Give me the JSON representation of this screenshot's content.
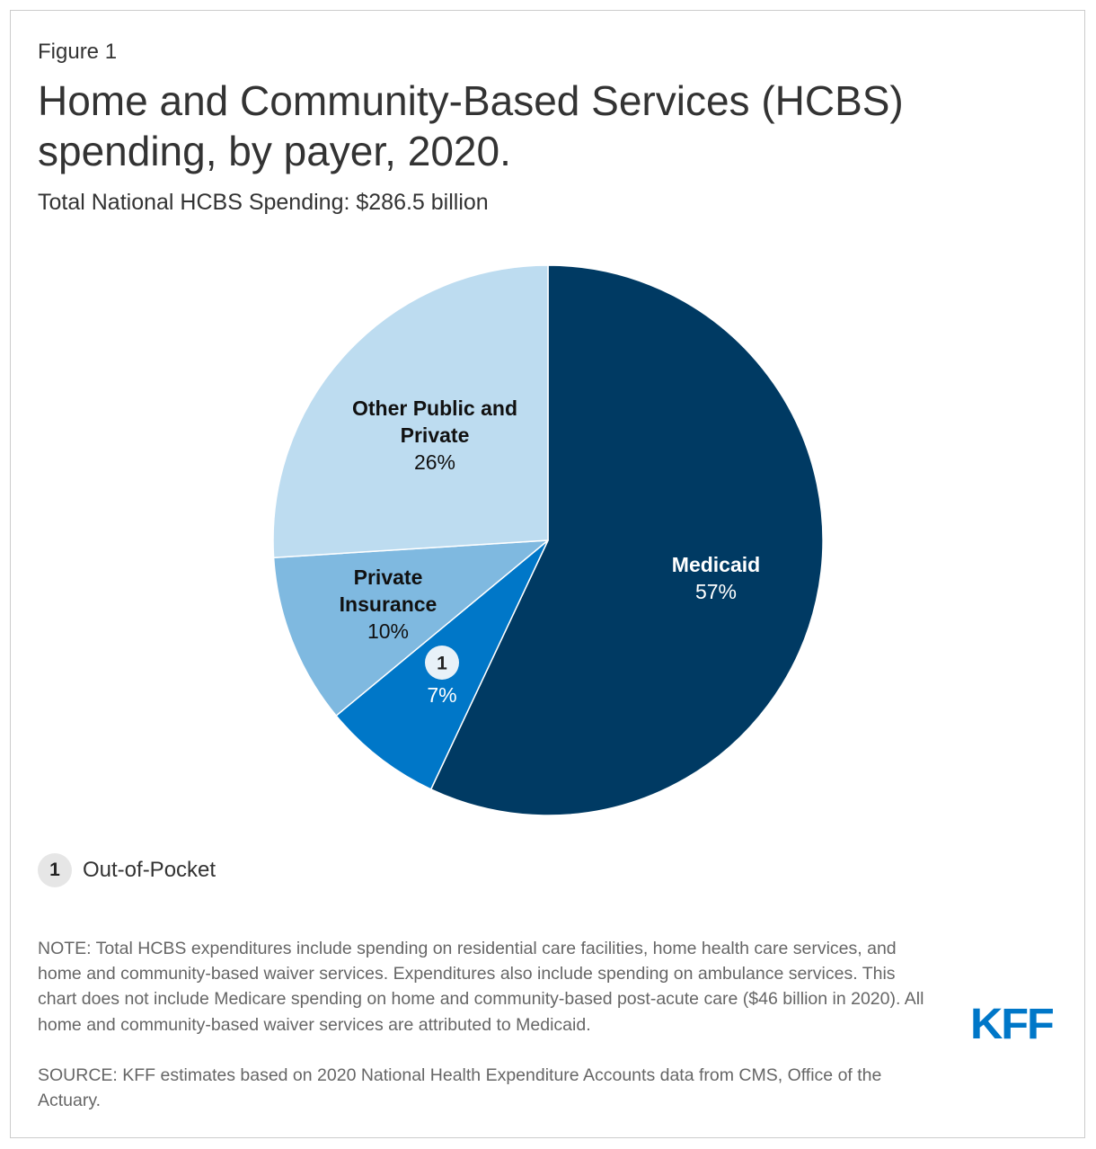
{
  "header": {
    "figure_label": "Figure 1",
    "title": "Home and Community-Based Services (HCBS) spending, by payer, 2020.",
    "subtitle": "Total National HCBS Spending: $286.5 billion"
  },
  "chart_data": {
    "type": "pie",
    "title": "Home and Community-Based Services (HCBS) spending, by payer, 2020.",
    "subtitle": "Total National HCBS Spending: $286.5 billion",
    "start_angle_deg": 0,
    "direction": "clockwise",
    "slices": [
      {
        "name": "Medicaid",
        "label": "Medicaid",
        "value": 57,
        "value_label": "57%",
        "color": "#003a63",
        "label_color": "#ffffff"
      },
      {
        "name": "Out-of-Pocket",
        "label": "1",
        "value": 7,
        "value_label": "7%",
        "color": "#0077c8",
        "label_color": "#ffffff",
        "badge": true
      },
      {
        "name": "Private Insurance",
        "label": "Private Insurance",
        "value": 10,
        "value_label": "10%",
        "color": "#7fb9e0",
        "label_color": "#111111"
      },
      {
        "name": "Other Public and Private",
        "label": "Other Public and Private",
        "value": 26,
        "value_label": "26%",
        "color": "#bddcf0",
        "label_color": "#111111"
      }
    ]
  },
  "legend": {
    "badge": "1",
    "label": "Out-of-Pocket"
  },
  "footer": {
    "note": "NOTE: Total HCBS expenditures include spending on residential care facilities, home health care services, and home and community-based waiver services. Expenditures also include spending on ambulance services. This chart does not include Medicare spending on home and community-based post-acute care ($46 billion in 2020). All home and community-based waiver services are attributed to Medicaid.",
    "source": "SOURCE: KFF estimates based on 2020 National Health Expenditure Accounts data from CMS, Office of the Actuary.",
    "logo": "KFF"
  }
}
